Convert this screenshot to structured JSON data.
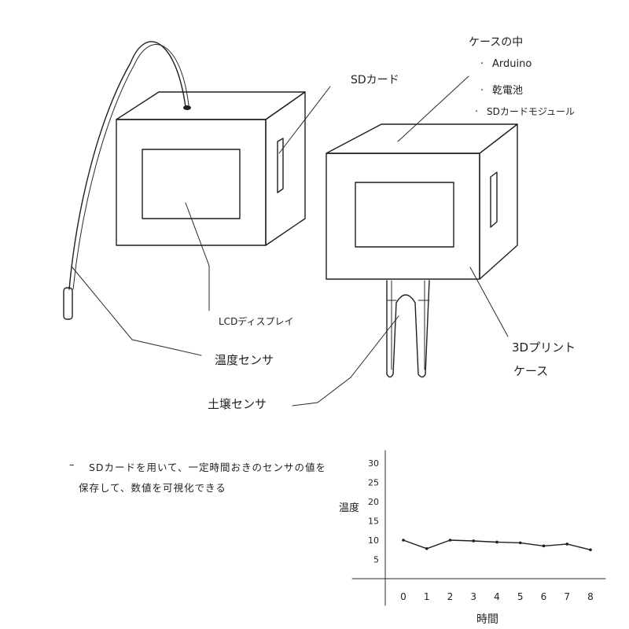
{
  "labels": {
    "sd_card": "SDカード",
    "case_inside_title": "ケースの中",
    "case_inside_items": [
      "Arduino",
      "乾電池",
      "SDカードモジュール"
    ],
    "lcd_display": "LCDディスプレイ",
    "temp_sensor": "温度センサ",
    "soil_sensor": "土壌センサ",
    "case_3d_line1": "3Dプリント",
    "case_3d_line2": "ケース"
  },
  "note": {
    "dash": "–",
    "line1": "SDカードを用いて、一定時間おきのセンサの値を",
    "line2": "保存して、数値を可視化できる"
  },
  "chart_data": {
    "type": "line",
    "xlabel": "時間",
    "ylabel": "温度",
    "x": [
      0,
      1,
      2,
      3,
      4,
      5,
      6,
      7,
      8
    ],
    "values": [
      10,
      7.8,
      10,
      9.8,
      9.5,
      9.3,
      8.5,
      9,
      7.5
    ],
    "xticks": [
      "0",
      "1",
      "2",
      "3",
      "4",
      "5",
      "6",
      "7",
      "8"
    ],
    "yticks": [
      "5",
      "10",
      "15",
      "20",
      "25",
      "30"
    ],
    "ylim": [
      0,
      30
    ],
    "xlim": [
      0,
      8
    ],
    "grid": false
  }
}
